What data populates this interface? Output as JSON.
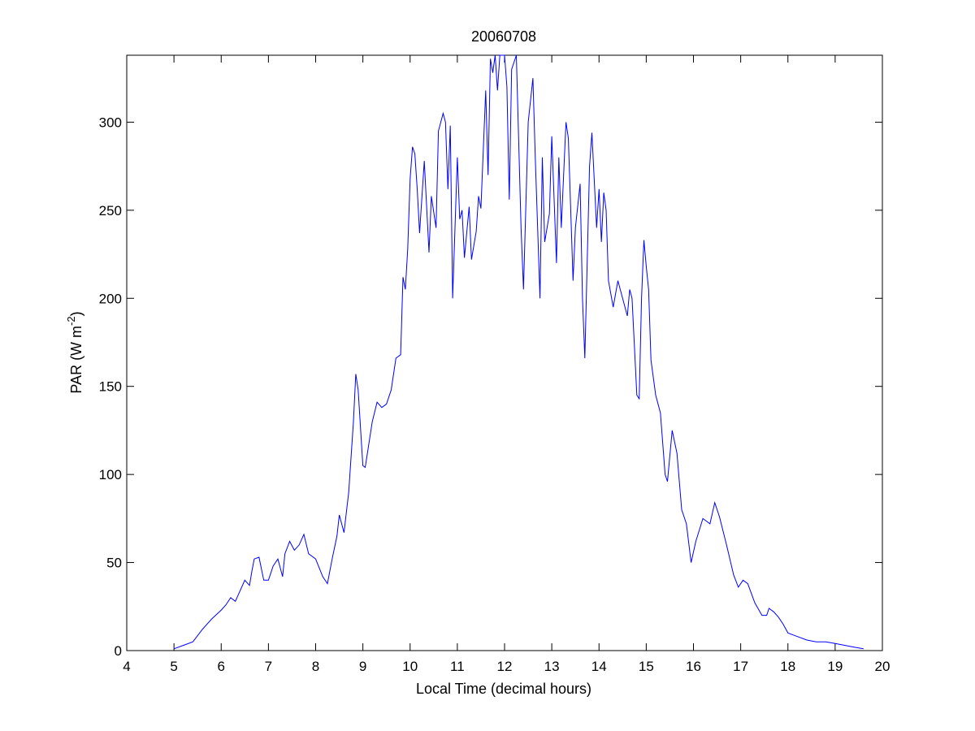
{
  "chart_data": {
    "type": "line",
    "title": "20060708",
    "xlabel": "Local Time (decimal hours)",
    "ylabel_main": "PAR (W m",
    "ylabel_sup": "-2",
    "ylabel_close": ")",
    "xlim": [
      4,
      20
    ],
    "ylim": [
      0,
      338
    ],
    "xticks": [
      "4",
      "5",
      "6",
      "7",
      "8",
      "9",
      "10",
      "11",
      "12",
      "13",
      "14",
      "15",
      "16",
      "17",
      "18",
      "19",
      "20"
    ],
    "yticks": [
      "0",
      "50",
      "100",
      "150",
      "200",
      "250",
      "300"
    ],
    "grid": false,
    "legend": "none",
    "series": [
      {
        "color": "#0000ff",
        "points": [
          [
            5.0,
            1
          ],
          [
            5.2,
            3
          ],
          [
            5.4,
            5
          ],
          [
            5.6,
            12
          ],
          [
            5.8,
            18
          ],
          [
            6.0,
            23
          ],
          [
            6.1,
            26
          ],
          [
            6.2,
            30
          ],
          [
            6.3,
            28
          ],
          [
            6.4,
            34
          ],
          [
            6.5,
            40
          ],
          [
            6.6,
            37
          ],
          [
            6.65,
            45
          ],
          [
            6.7,
            52
          ],
          [
            6.8,
            53
          ],
          [
            6.9,
            40
          ],
          [
            7.0,
            40
          ],
          [
            7.1,
            48
          ],
          [
            7.2,
            52
          ],
          [
            7.3,
            42
          ],
          [
            7.35,
            55
          ],
          [
            7.45,
            62
          ],
          [
            7.55,
            57
          ],
          [
            7.65,
            60
          ],
          [
            7.75,
            66
          ],
          [
            7.85,
            55
          ],
          [
            8.0,
            52
          ],
          [
            8.15,
            42
          ],
          [
            8.25,
            38
          ],
          [
            8.35,
            52
          ],
          [
            8.45,
            65
          ],
          [
            8.5,
            77
          ],
          [
            8.6,
            67
          ],
          [
            8.7,
            90
          ],
          [
            8.8,
            130
          ],
          [
            8.85,
            157
          ],
          [
            8.9,
            148
          ],
          [
            9.0,
            105
          ],
          [
            9.05,
            104
          ],
          [
            9.2,
            130
          ],
          [
            9.3,
            141
          ],
          [
            9.4,
            138
          ],
          [
            9.5,
            140
          ],
          [
            9.6,
            148
          ],
          [
            9.7,
            166
          ],
          [
            9.8,
            168
          ],
          [
            9.85,
            212
          ],
          [
            9.9,
            205
          ],
          [
            9.95,
            228
          ],
          [
            10.0,
            268
          ],
          [
            10.05,
            286
          ],
          [
            10.1,
            282
          ],
          [
            10.15,
            262
          ],
          [
            10.2,
            237
          ],
          [
            10.3,
            278
          ],
          [
            10.4,
            226
          ],
          [
            10.45,
            258
          ],
          [
            10.55,
            240
          ],
          [
            10.6,
            295
          ],
          [
            10.7,
            305
          ],
          [
            10.75,
            300
          ],
          [
            10.8,
            262
          ],
          [
            10.85,
            298
          ],
          [
            10.9,
            200
          ],
          [
            11.0,
            280
          ],
          [
            11.05,
            245
          ],
          [
            11.1,
            250
          ],
          [
            11.15,
            223
          ],
          [
            11.25,
            252
          ],
          [
            11.3,
            222
          ],
          [
            11.4,
            238
          ],
          [
            11.45,
            258
          ],
          [
            11.5,
            251
          ],
          [
            11.6,
            318
          ],
          [
            11.65,
            270
          ],
          [
            11.7,
            336
          ],
          [
            11.75,
            328
          ],
          [
            11.8,
            338
          ],
          [
            11.85,
            318
          ],
          [
            11.9,
            338
          ],
          [
            12.0,
            338
          ],
          [
            12.05,
            320
          ],
          [
            12.1,
            256
          ],
          [
            12.15,
            330
          ],
          [
            12.25,
            338
          ],
          [
            12.35,
            240
          ],
          [
            12.4,
            205
          ],
          [
            12.5,
            300
          ],
          [
            12.6,
            325
          ],
          [
            12.65,
            280
          ],
          [
            12.75,
            200
          ],
          [
            12.8,
            280
          ],
          [
            12.85,
            232
          ],
          [
            12.95,
            248
          ],
          [
            13.0,
            292
          ],
          [
            13.1,
            220
          ],
          [
            13.15,
            280
          ],
          [
            13.2,
            240
          ],
          [
            13.3,
            300
          ],
          [
            13.35,
            291
          ],
          [
            13.45,
            210
          ],
          [
            13.5,
            240
          ],
          [
            13.6,
            265
          ],
          [
            13.65,
            200
          ],
          [
            13.7,
            166
          ],
          [
            13.8,
            275
          ],
          [
            13.85,
            294
          ],
          [
            13.95,
            240
          ],
          [
            14.0,
            262
          ],
          [
            14.05,
            232
          ],
          [
            14.1,
            260
          ],
          [
            14.15,
            250
          ],
          [
            14.2,
            210
          ],
          [
            14.3,
            195
          ],
          [
            14.4,
            210
          ],
          [
            14.5,
            200
          ],
          [
            14.6,
            190
          ],
          [
            14.65,
            205
          ],
          [
            14.7,
            200
          ],
          [
            14.8,
            145
          ],
          [
            14.85,
            143
          ],
          [
            14.9,
            200
          ],
          [
            14.95,
            233
          ],
          [
            15.0,
            218
          ],
          [
            15.05,
            205
          ],
          [
            15.1,
            165
          ],
          [
            15.2,
            145
          ],
          [
            15.3,
            135
          ],
          [
            15.4,
            100
          ],
          [
            15.45,
            96
          ],
          [
            15.55,
            125
          ],
          [
            15.65,
            112
          ],
          [
            15.75,
            80
          ],
          [
            15.85,
            72
          ],
          [
            15.95,
            50
          ],
          [
            16.05,
            62
          ],
          [
            16.2,
            75
          ],
          [
            16.35,
            72
          ],
          [
            16.45,
            84
          ],
          [
            16.55,
            76
          ],
          [
            16.7,
            60
          ],
          [
            16.85,
            43
          ],
          [
            16.95,
            36
          ],
          [
            17.05,
            40
          ],
          [
            17.15,
            38
          ],
          [
            17.3,
            27
          ],
          [
            17.45,
            20
          ],
          [
            17.55,
            20
          ],
          [
            17.6,
            24
          ],
          [
            17.7,
            22
          ],
          [
            17.8,
            19
          ],
          [
            17.9,
            15
          ],
          [
            18.0,
            10
          ],
          [
            18.2,
            8
          ],
          [
            18.4,
            6
          ],
          [
            18.6,
            5
          ],
          [
            18.8,
            5
          ],
          [
            19.0,
            4
          ],
          [
            19.2,
            3
          ],
          [
            19.4,
            2
          ],
          [
            19.6,
            1
          ]
        ]
      }
    ]
  }
}
